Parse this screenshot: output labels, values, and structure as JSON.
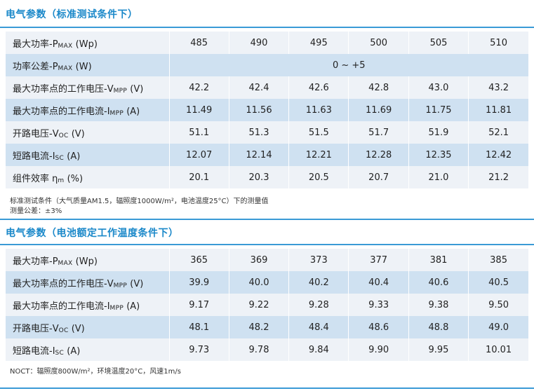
{
  "section1": {
    "title": "电气参数（标准测试条件下）",
    "rows": [
      {
        "prefix": "最大功率-P",
        "sub": "MAX",
        "suffix": " (Wp)",
        "values": [
          "485",
          "490",
          "495",
          "500",
          "505",
          "510"
        ]
      },
      {
        "prefix": "功率公差-P",
        "sub": "MAX",
        "suffix": " (W)",
        "merged": "0 ~ +5"
      },
      {
        "prefix": "最大功率点的工作电压-V",
        "sub": "MPP",
        "suffix": " (V)",
        "values": [
          "42.2",
          "42.4",
          "42.6",
          "42.8",
          "43.0",
          "43.2"
        ]
      },
      {
        "prefix": "最大功率点的工作电流-I",
        "sub": "MPP",
        "suffix": " (A)",
        "values": [
          "11.49",
          "11.56",
          "11.63",
          "11.69",
          "11.75",
          "11.81"
        ]
      },
      {
        "prefix": "开路电压-V",
        "sub": "OC",
        "suffix": " (V)",
        "values": [
          "51.1",
          "51.3",
          "51.5",
          "51.7",
          "51.9",
          "52.1"
        ]
      },
      {
        "prefix": "短路电流-I",
        "sub": "SC",
        "suffix": " (A)",
        "values": [
          "12.07",
          "12.14",
          "12.21",
          "12.28",
          "12.35",
          "12.42"
        ]
      },
      {
        "prefix": "组件效率 η",
        "sub": "m",
        "suffix": " (%)",
        "values": [
          "20.1",
          "20.3",
          "20.5",
          "20.7",
          "21.0",
          "21.2"
        ]
      }
    ],
    "note_line1": "标准测试条件（大气质量AM1.5，辐照度1000W/m²，电池温度25°C）下的测量值",
    "note_line2": "测量公差：±3%"
  },
  "section2": {
    "title": "电气参数（电池额定工作温度条件下）",
    "rows": [
      {
        "prefix": "最大功率-P",
        "sub": "MAX",
        "suffix": " (Wp)",
        "values": [
          "365",
          "369",
          "373",
          "377",
          "381",
          "385"
        ]
      },
      {
        "prefix": "最大功率点的工作电压-V",
        "sub": "MPP",
        "suffix": " (V)",
        "values": [
          "39.9",
          "40.0",
          "40.2",
          "40.4",
          "40.6",
          "40.5"
        ]
      },
      {
        "prefix": "最大功率点的工作电流-I",
        "sub": "MPP",
        "suffix": " (A)",
        "values": [
          "9.17",
          "9.22",
          "9.28",
          "9.33",
          "9.38",
          "9.50"
        ]
      },
      {
        "prefix": "开路电压-V",
        "sub": "OC",
        "suffix": " (V)",
        "values": [
          "48.1",
          "48.2",
          "48.4",
          "48.6",
          "48.8",
          "49.0"
        ]
      },
      {
        "prefix": "短路电流-I",
        "sub": "SC",
        "suffix": " (A)",
        "values": [
          "9.73",
          "9.78",
          "9.84",
          "9.90",
          "9.95",
          "10.01"
        ]
      }
    ],
    "note_line1": "NOCT：辐照度800W/m²，环境温度20°C，风速1m/s"
  }
}
